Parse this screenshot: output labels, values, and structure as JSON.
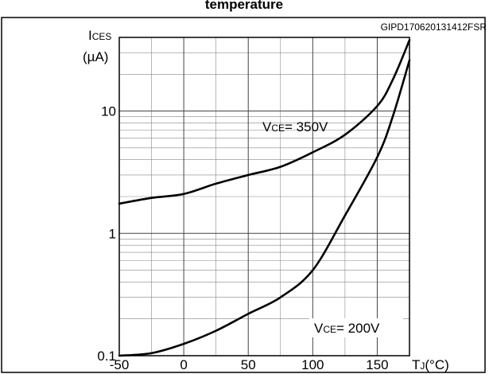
{
  "chart_data": {
    "type": "line",
    "title": "temperature",
    "figure_code": "GIPD170620131412FSR",
    "ylabel": {
      "main": "I",
      "sub": "CES",
      "unit": "(µA)"
    },
    "xlabel": {
      "main": "T",
      "sub": "J",
      "unit": "(°C)"
    },
    "xlim": [
      -50,
      175
    ],
    "ylim": [
      0.1,
      40
    ],
    "yscale": "log",
    "grid": true,
    "x_ticks": [
      "-50",
      "0",
      "50",
      "100",
      "150"
    ],
    "y_ticks": [
      "0.1",
      "1",
      "10"
    ],
    "series": [
      {
        "label_main": "V",
        "label_sub": "CE",
        "label_rest": "= 350V",
        "points": [
          [
            -50,
            1.75
          ],
          [
            -25,
            1.95
          ],
          [
            0,
            2.1
          ],
          [
            25,
            2.55
          ],
          [
            50,
            3.0
          ],
          [
            75,
            3.5
          ],
          [
            100,
            4.6
          ],
          [
            125,
            6.4
          ],
          [
            150,
            11.0
          ],
          [
            162,
            18.0
          ],
          [
            175,
            38.0
          ]
        ]
      },
      {
        "label_main": "V",
        "label_sub": "CE",
        "label_rest": "= 200V",
        "points": [
          [
            -50,
            0.1
          ],
          [
            -25,
            0.105
          ],
          [
            0,
            0.125
          ],
          [
            25,
            0.16
          ],
          [
            50,
            0.22
          ],
          [
            75,
            0.3
          ],
          [
            100,
            0.5
          ],
          [
            125,
            1.4
          ],
          [
            150,
            4.2
          ],
          [
            162,
            9.0
          ],
          [
            175,
            26.0
          ]
        ]
      }
    ]
  }
}
